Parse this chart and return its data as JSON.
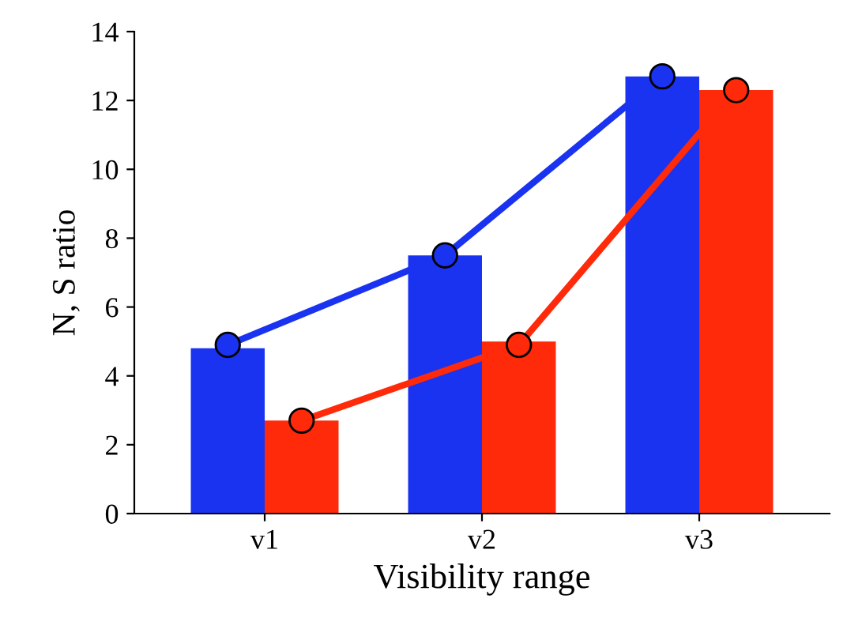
{
  "chart_data": {
    "type": "bar",
    "xlabel": "Visibility range",
    "ylabel": "N, S ratio",
    "categories": [
      "v1",
      "v2",
      "v3"
    ],
    "series": [
      {
        "color": "#1a33f0",
        "values": [
          4.8,
          7.5,
          12.7
        ]
      },
      {
        "color": "#ff2a0a",
        "values": [
          2.7,
          5.0,
          12.3
        ]
      },
      {
        "type": "line",
        "color": "#1a33f0",
        "values": [
          4.9,
          7.5,
          12.7
        ],
        "marker": "circle"
      },
      {
        "type": "line",
        "color": "#ff2a0a",
        "values": [
          2.7,
          4.9,
          12.3
        ],
        "marker": "circle"
      }
    ],
    "ylim": [
      0,
      14
    ],
    "yticks": [
      0,
      2,
      4,
      6,
      8,
      10,
      12,
      14
    ],
    "grid": false
  }
}
